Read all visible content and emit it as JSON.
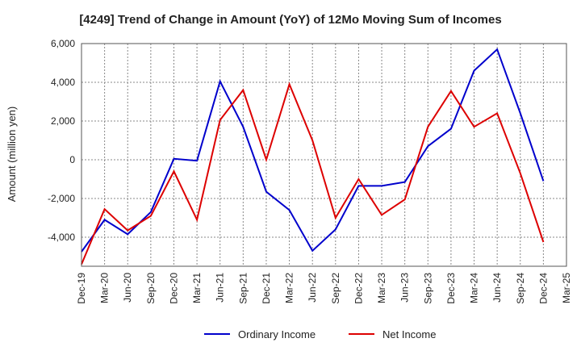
{
  "chart_data": {
    "type": "line",
    "title": "[4249]  Trend of Change in Amount (YoY) of 12Mo Moving Sum of Incomes",
    "xlabel": "",
    "ylabel": "Amount (million yen)",
    "ylim": [
      -5500,
      6000
    ],
    "yticks": [
      6000,
      4000,
      2000,
      0,
      -2000,
      -4000
    ],
    "ytick_labels": [
      "6,000",
      "4,000",
      "2,000",
      "0",
      "-2,000",
      "-4,000"
    ],
    "categories": [
      "Dec-19",
      "Mar-20",
      "Jun-20",
      "Sep-20",
      "Dec-20",
      "Mar-21",
      "Jun-21",
      "Sep-21",
      "Dec-21",
      "Mar-22",
      "Jun-22",
      "Sep-22",
      "Dec-22",
      "Mar-23",
      "Jun-23",
      "Sep-23",
      "Dec-23",
      "Mar-24",
      "Jun-24",
      "Sep-24",
      "Dec-24",
      "Mar-25"
    ],
    "series": [
      {
        "name": "Ordinary Income",
        "color": "#0000cc",
        "values": [
          -4750,
          -3100,
          -3850,
          -2700,
          50,
          -50,
          4050,
          1700,
          -1650,
          -2600,
          -4700,
          -3600,
          -1350,
          -1350,
          -1150,
          700,
          1600,
          4600,
          5700,
          2400,
          -1100,
          null
        ]
      },
      {
        "name": "Net Income",
        "color": "#dd0000",
        "values": [
          -5400,
          -2550,
          -3650,
          -2900,
          -600,
          -3100,
          2050,
          3600,
          0,
          3900,
          1000,
          -3000,
          -1000,
          -2850,
          -2050,
          1700,
          3550,
          1700,
          2400,
          -700,
          -4250,
          null
        ]
      }
    ],
    "grid": true,
    "legend": "bottom-center"
  }
}
